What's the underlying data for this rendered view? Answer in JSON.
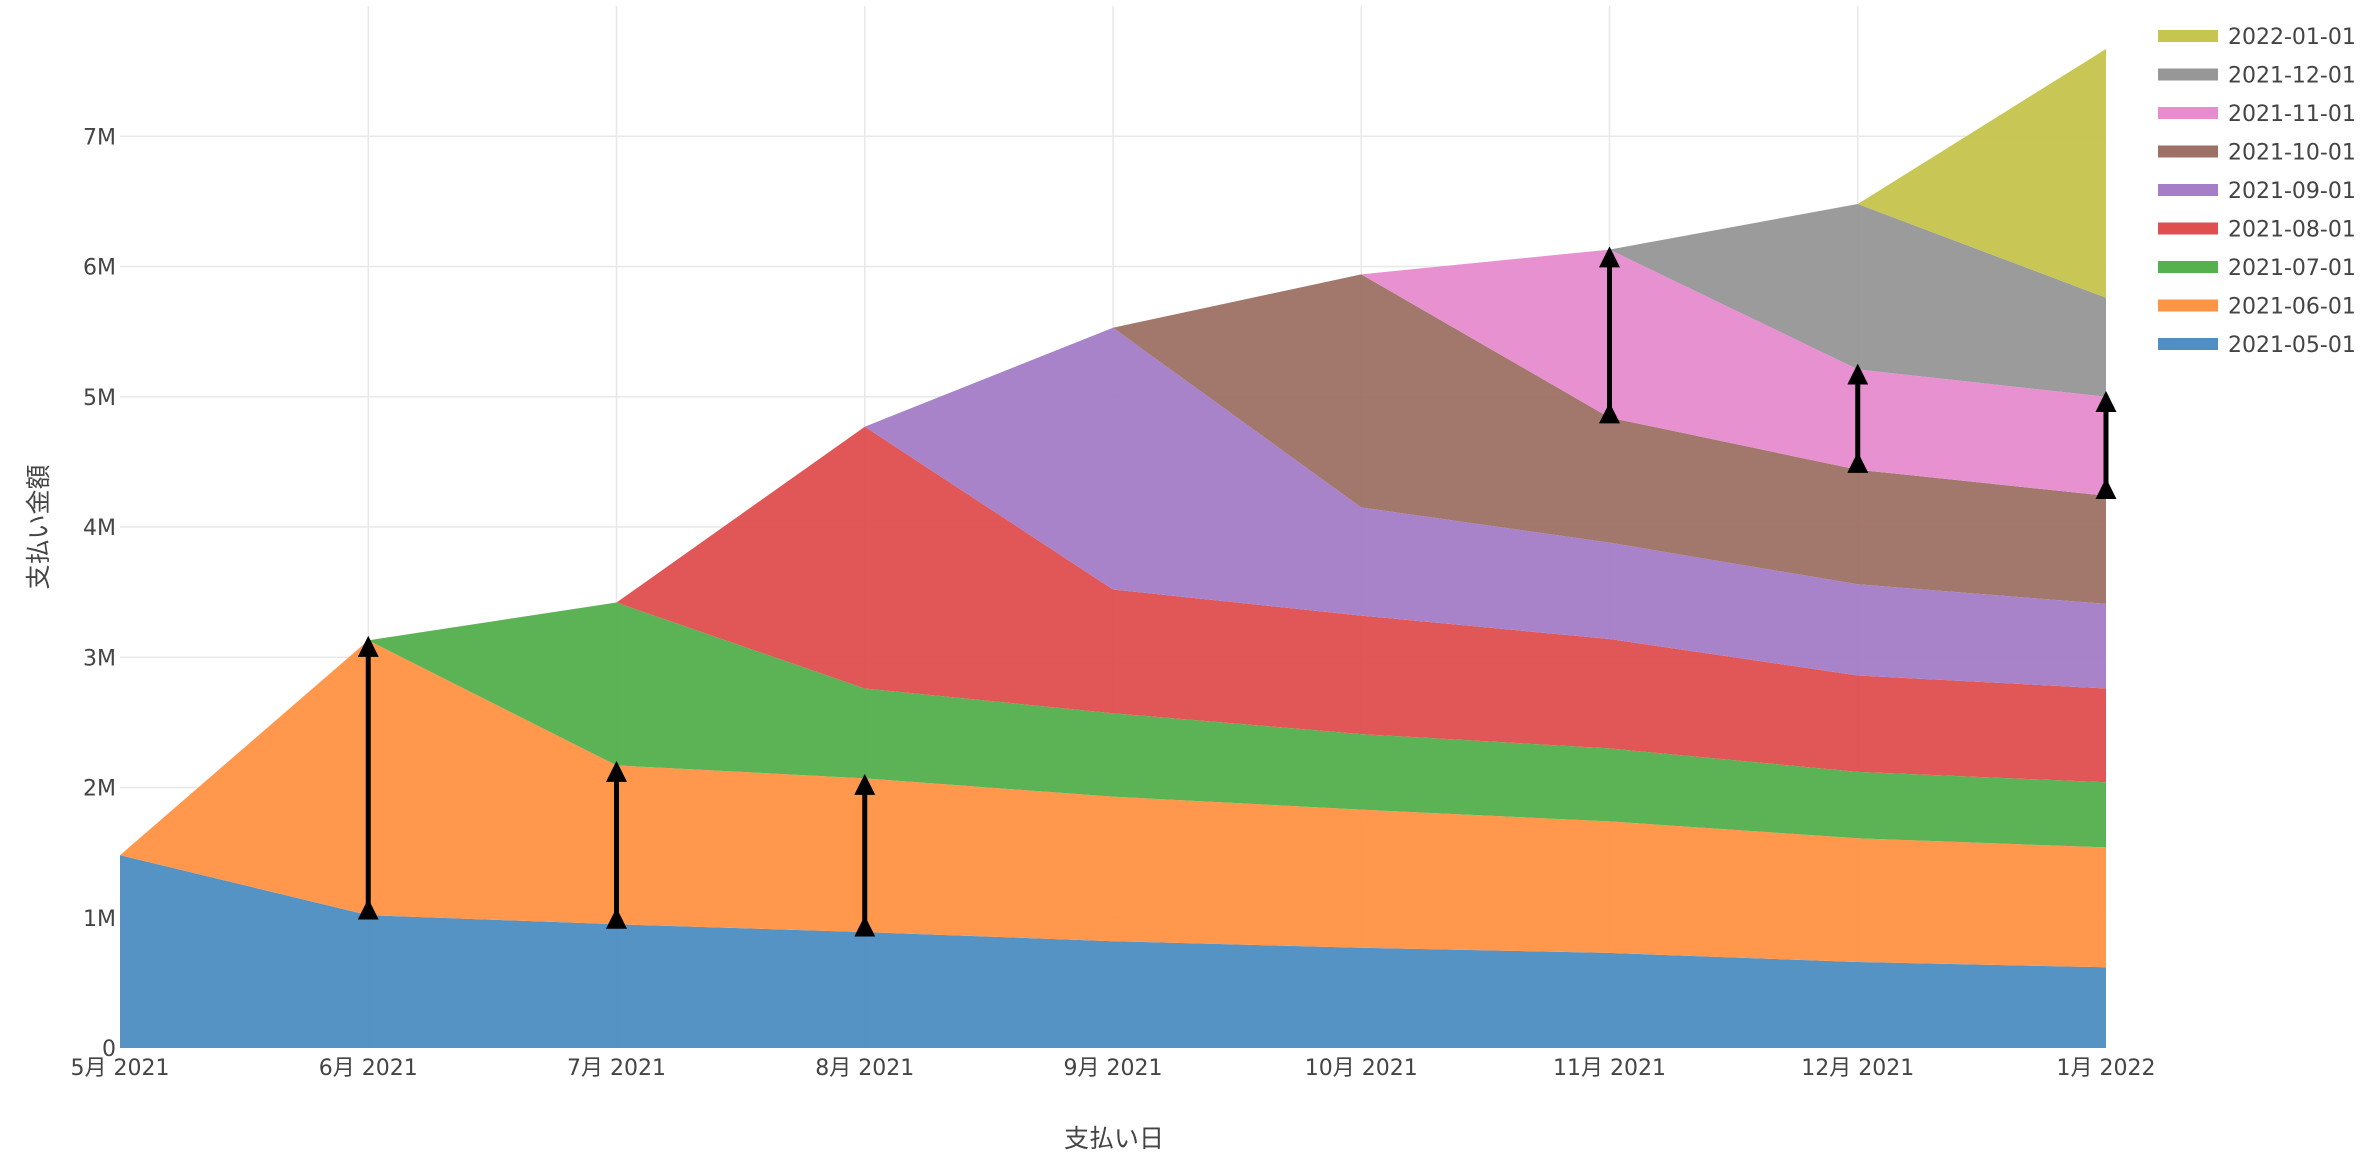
{
  "chart_data": {
    "type": "area",
    "stacked": true,
    "xlabel": "支払い日",
    "ylabel": "支払い金額",
    "x": [
      "5月 2021",
      "6月 2021",
      "7月 2021",
      "8月 2021",
      "9月 2021",
      "10月 2021",
      "11月 2021",
      "12月 2021",
      "1月 2022"
    ],
    "y_ticks": [
      "0",
      "1M",
      "2M",
      "3M",
      "4M",
      "5M",
      "6M",
      "7M"
    ],
    "ylim": [
      0,
      8000000
    ],
    "grid": true,
    "legend_position": "top-right",
    "series": [
      {
        "name": "2021-05-01",
        "color": "#4f8fc3",
        "values": [
          1480000,
          1020000,
          950000,
          890000,
          820000,
          770000,
          730000,
          660000,
          620000
        ]
      },
      {
        "name": "2021-06-01",
        "color": "#ff9445",
        "values": [
          null,
          2110000,
          1220000,
          1180000,
          1110000,
          1060000,
          1010000,
          950000,
          920000
        ]
      },
      {
        "name": "2021-07-01",
        "color": "#55b04e",
        "values": [
          null,
          null,
          1250000,
          690000,
          640000,
          580000,
          560000,
          510000,
          500000
        ]
      },
      {
        "name": "2021-08-01",
        "color": "#e04f4f",
        "values": [
          null,
          null,
          null,
          2010000,
          950000,
          910000,
          840000,
          740000,
          720000
        ]
      },
      {
        "name": "2021-09-01",
        "color": "#a67ec8",
        "values": [
          null,
          null,
          null,
          null,
          2010000,
          830000,
          740000,
          700000,
          650000
        ]
      },
      {
        "name": "2021-10-01",
        "color": "#9e7166",
        "values": [
          null,
          null,
          null,
          null,
          null,
          1790000,
          960000,
          880000,
          830000
        ]
      },
      {
        "name": "2021-11-01",
        "color": "#e78ccf",
        "values": [
          null,
          null,
          null,
          null,
          null,
          null,
          1290000,
          770000,
          760000
        ]
      },
      {
        "name": "2021-12-01",
        "color": "#979797",
        "values": [
          null,
          null,
          null,
          null,
          null,
          null,
          null,
          1270000,
          760000
        ]
      },
      {
        "name": "2022-01-01",
        "color": "#c6c54f",
        "values": [
          null,
          null,
          null,
          null,
          null,
          null,
          null,
          null,
          1910000
        ]
      }
    ],
    "annotations": [
      {
        "type": "double-arrow",
        "x_index": 1,
        "from": 1020000,
        "to": 3130000
      },
      {
        "type": "double-arrow",
        "x_index": 2,
        "from": 950000,
        "to": 2170000
      },
      {
        "type": "double-arrow",
        "x_index": 3,
        "from": 890000,
        "to": 2070000
      },
      {
        "type": "double-arrow",
        "x_index": 6,
        "from": 4830000,
        "to": 6120000
      },
      {
        "type": "double-arrow",
        "x_index": 7,
        "from": 4450000,
        "to": 5220000
      },
      {
        "type": "double-arrow",
        "x_index": 8,
        "from": 4250000,
        "to": 5010000
      }
    ]
  }
}
